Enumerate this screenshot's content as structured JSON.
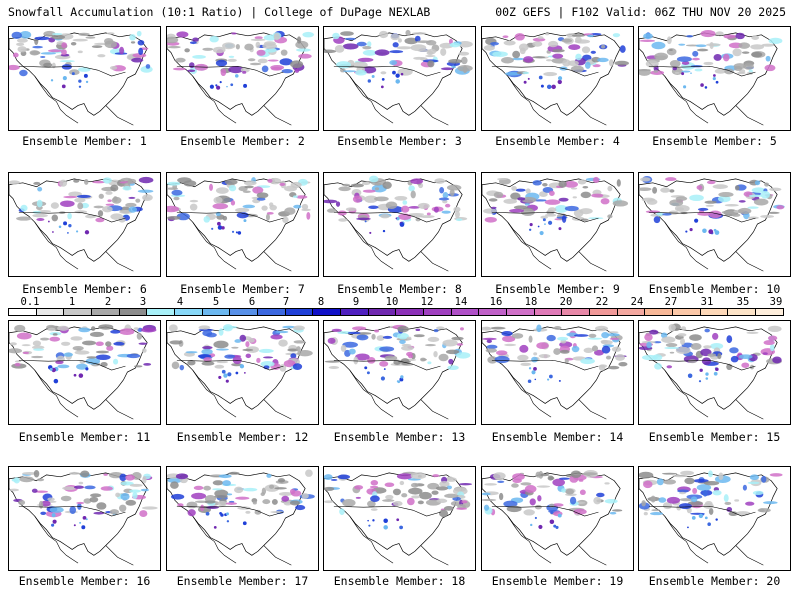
{
  "header": {
    "left_title": "Snowfall Accumulation (10:1 Ratio) | College of DuPage NEXLAB",
    "right_title": "00Z GEFS | F102 Valid: 06Z THU NOV 20 2025"
  },
  "colorbar": {
    "labels": [
      "0.1",
      "1",
      "2",
      "3",
      "4",
      "5",
      "6",
      "7",
      "8",
      "9",
      "10",
      "12",
      "14",
      "16",
      "18",
      "20",
      "22",
      "24",
      "27",
      "31",
      "35",
      "39"
    ],
    "colors": [
      "#ffffff",
      "#e8e8e8",
      "#c8c8c8",
      "#a8a8a8",
      "#8c8c8c",
      "#a8f0f8",
      "#88d8f8",
      "#6cb8f0",
      "#5890e8",
      "#3c68e0",
      "#2040d8",
      "#1010c8",
      "#5020c0",
      "#7028b0",
      "#8c30b8",
      "#a040c0",
      "#b050c8",
      "#c060c8",
      "#d070c8",
      "#e07ab8",
      "#e888a8",
      "#f09898",
      "#f4a8a0",
      "#f8b898",
      "#fcc8a8",
      "#fdd8b8",
      "#fde4c8",
      "#feeedc"
    ]
  },
  "members": [
    {
      "label": "Ensemble Member: 1"
    },
    {
      "label": "Ensemble Member: 2"
    },
    {
      "label": "Ensemble Member: 3"
    },
    {
      "label": "Ensemble Member: 4"
    },
    {
      "label": "Ensemble Member: 5"
    },
    {
      "label": "Ensemble Member: 6"
    },
    {
      "label": "Ensemble Member: 7"
    },
    {
      "label": "Ensemble Member: 8"
    },
    {
      "label": "Ensemble Member: 9"
    },
    {
      "label": "Ensemble Member: 10"
    },
    {
      "label": "Ensemble Member: 11"
    },
    {
      "label": "Ensemble Member: 12"
    },
    {
      "label": "Ensemble Member: 13"
    },
    {
      "label": "Ensemble Member: 14"
    },
    {
      "label": "Ensemble Member: 15"
    },
    {
      "label": "Ensemble Member: 16"
    },
    {
      "label": "Ensemble Member: 17"
    },
    {
      "label": "Ensemble Member: 18"
    },
    {
      "label": "Ensemble Member: 19"
    },
    {
      "label": "Ensemble Member: 20"
    }
  ]
}
